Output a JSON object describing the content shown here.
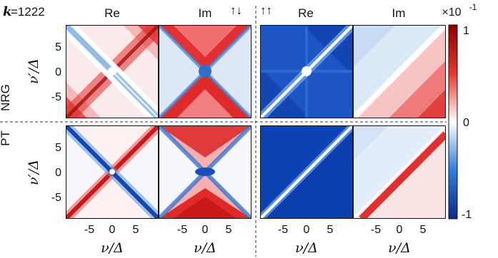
{
  "k_label": "k",
  "k_value": "=1222",
  "spin_labels": {
    "opposite": "↑↓",
    "parallel": "↑↑"
  },
  "columns": [
    "Re",
    "Im",
    "Re",
    "Im"
  ],
  "rows": [
    "NRG",
    "PT"
  ],
  "x_tick_labels": [
    "-5",
    "0",
    "5"
  ],
  "y_tick_labels": [
    "5",
    "0",
    "-5"
  ],
  "x_axis_label": "ν/Δ",
  "y_axis_label": "ν′/Δ",
  "colorbar": {
    "scale_label": "×10",
    "scale_exponent": "-1",
    "tick_labels": [
      "1",
      "0",
      "-1"
    ],
    "colors": {
      "max": "#8b0000",
      "zero": "#ffffff",
      "min": "#0a2a8a"
    }
  },
  "chart_data": [
    {
      "type": "heatmap",
      "row": "NRG",
      "column": "Re",
      "spin": "↑↓",
      "x": "ν/Δ",
      "y": "ν′/Δ",
      "xlim": [
        -10,
        10
      ],
      "ylim": [
        -10,
        10
      ],
      "zlim": [
        -1,
        1
      ]
    },
    {
      "type": "heatmap",
      "row": "NRG",
      "column": "Im",
      "spin": "↑↓",
      "x": "ν/Δ",
      "y": "ν′/Δ",
      "xlim": [
        -10,
        10
      ],
      "ylim": [
        -10,
        10
      ],
      "zlim": [
        -1,
        1
      ]
    },
    {
      "type": "heatmap",
      "row": "NRG",
      "column": "Re",
      "spin": "↑↑",
      "x": "ν/Δ",
      "y": "ν′/Δ",
      "xlim": [
        -10,
        10
      ],
      "ylim": [
        -10,
        10
      ],
      "zlim": [
        -1,
        1
      ]
    },
    {
      "type": "heatmap",
      "row": "NRG",
      "column": "Im",
      "spin": "↑↑",
      "x": "ν/Δ",
      "y": "ν′/Δ",
      "xlim": [
        -10,
        10
      ],
      "ylim": [
        -10,
        10
      ],
      "zlim": [
        -1,
        1
      ]
    },
    {
      "type": "heatmap",
      "row": "PT",
      "column": "Re",
      "spin": "↑↓",
      "x": "ν/Δ",
      "y": "ν′/Δ",
      "xlim": [
        -10,
        10
      ],
      "ylim": [
        -10,
        10
      ],
      "zlim": [
        -1,
        1
      ]
    },
    {
      "type": "heatmap",
      "row": "PT",
      "column": "Im",
      "spin": "↑↓",
      "x": "ν/Δ",
      "y": "ν′/Δ",
      "xlim": [
        -10,
        10
      ],
      "ylim": [
        -10,
        10
      ],
      "zlim": [
        -1,
        1
      ]
    },
    {
      "type": "heatmap",
      "row": "PT",
      "column": "Re",
      "spin": "↑↑",
      "x": "ν/Δ",
      "y": "ν′/Δ",
      "xlim": [
        -10,
        10
      ],
      "ylim": [
        -10,
        10
      ],
      "zlim": [
        -1,
        1
      ]
    },
    {
      "type": "heatmap",
      "row": "PT",
      "column": "Im",
      "spin": "↑↑",
      "x": "ν/Δ",
      "y": "ν′/Δ",
      "xlim": [
        -10,
        10
      ],
      "ylim": [
        -10,
        10
      ],
      "zlim": [
        -1,
        1
      ]
    }
  ]
}
